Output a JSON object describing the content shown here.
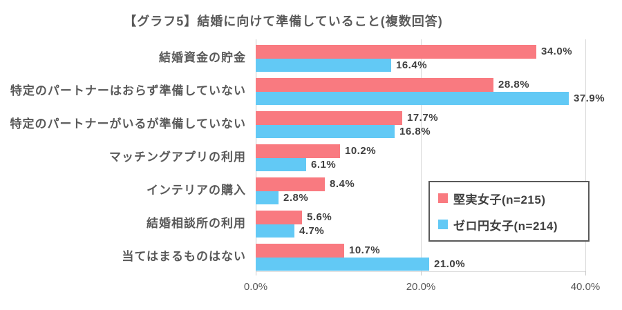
{
  "title": "【グラフ5】結婚に向けて準備していること(複数回答)",
  "chart_data": {
    "type": "bar",
    "orientation": "horizontal",
    "title": "【グラフ5】結婚に向けて準備していること(複数回答)",
    "categories": [
      "結婚資金の貯金",
      "特定のパートナーはおらず準備していない",
      "特定のパートナーがいるが準備していない",
      "マッチングアプリの利用",
      "インテリアの購入",
      "結婚相談所の利用",
      "当てはまるものはない"
    ],
    "series": [
      {
        "name": "堅実女子(n=215)",
        "color": "#F97A80",
        "values": [
          34.0,
          28.8,
          17.7,
          10.2,
          8.4,
          5.6,
          10.7
        ]
      },
      {
        "name": "ゼロ円女子(n=214)",
        "color": "#62C9F5",
        "values": [
          16.4,
          37.9,
          16.8,
          6.1,
          2.8,
          4.7,
          21.0
        ]
      }
    ],
    "x_axis": {
      "max": 40,
      "ticks": [
        {
          "value": 0,
          "label": "0.0%"
        },
        {
          "value": 20,
          "label": "20.0%"
        },
        {
          "value": 40,
          "label": "40.0%"
        }
      ]
    },
    "value_label_suffix": "%",
    "grid": true,
    "legend_position": "right-middle"
  },
  "colors": {
    "bar_pink": "#F97A80",
    "bar_blue": "#62C9F5",
    "gridline": "#D9D9D9",
    "zero_axis_line": "#C9C9C9",
    "title_text": "#595959",
    "category_text": "#595959",
    "axis_tick_text": "#595959",
    "data_label_text": "#3F3F3F",
    "legend_border": "#595959",
    "legend_text": "#404040",
    "background": "#FFFFFF"
  }
}
